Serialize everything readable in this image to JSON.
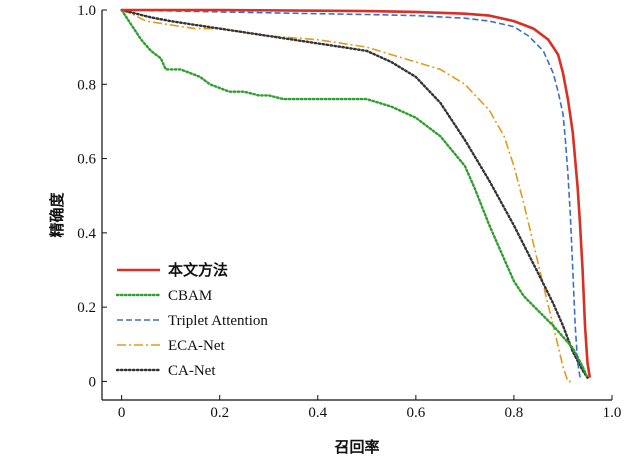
{
  "chart_data": {
    "type": "line",
    "title": "",
    "xlabel": "召回率",
    "ylabel": "精确度",
    "xlim": [
      -0.04,
      1.0
    ],
    "ylim": [
      -0.05,
      1.0
    ],
    "xticks": [
      0,
      0.2,
      0.4,
      0.6,
      0.8,
      1.0
    ],
    "xtick_labels": [
      "0",
      "0.2",
      "0.4",
      "0.6",
      "0.8",
      "1.0"
    ],
    "yticks": [
      0,
      0.2,
      0.4,
      0.6,
      0.8,
      1.0
    ],
    "ytick_labels": [
      "0",
      "0.2",
      "0.4",
      "0.6",
      "0.8",
      "1.0"
    ],
    "grid": false,
    "legend_position": "bottom-left",
    "series": [
      {
        "name": "本文方法",
        "color": "#d93025",
        "style": "solid",
        "x": [
          0.0,
          0.2,
          0.4,
          0.5,
          0.6,
          0.7,
          0.75,
          0.8,
          0.84,
          0.87,
          0.89,
          0.9,
          0.91,
          0.92,
          0.93,
          0.935,
          0.94,
          0.945,
          0.95,
          0.955
        ],
        "y": [
          1.0,
          1.0,
          0.998,
          0.997,
          0.995,
          0.99,
          0.985,
          0.97,
          0.95,
          0.92,
          0.88,
          0.83,
          0.76,
          0.67,
          0.52,
          0.42,
          0.3,
          0.15,
          0.05,
          0.01
        ]
      },
      {
        "name": "CBAM",
        "color": "#2e9e2e",
        "style": "dotted",
        "x": [
          0.0,
          0.02,
          0.04,
          0.06,
          0.08,
          0.09,
          0.1,
          0.12,
          0.14,
          0.16,
          0.18,
          0.2,
          0.22,
          0.25,
          0.28,
          0.3,
          0.33,
          0.36,
          0.4,
          0.45,
          0.5,
          0.55,
          0.6,
          0.65,
          0.7,
          0.72,
          0.75,
          0.78,
          0.8,
          0.82,
          0.85,
          0.88,
          0.9,
          0.92,
          0.94,
          0.95
        ],
        "y": [
          1.0,
          0.96,
          0.92,
          0.89,
          0.87,
          0.84,
          0.84,
          0.84,
          0.83,
          0.82,
          0.8,
          0.79,
          0.78,
          0.78,
          0.77,
          0.77,
          0.76,
          0.76,
          0.76,
          0.76,
          0.76,
          0.74,
          0.71,
          0.66,
          0.58,
          0.52,
          0.42,
          0.33,
          0.27,
          0.23,
          0.19,
          0.15,
          0.12,
          0.09,
          0.04,
          0.01
        ]
      },
      {
        "name": "Triplet Attention",
        "color": "#3d6fc6",
        "style": "dashed",
        "x": [
          0.0,
          0.2,
          0.4,
          0.5,
          0.6,
          0.7,
          0.75,
          0.8,
          0.83,
          0.86,
          0.88,
          0.89,
          0.9,
          0.905,
          0.91,
          0.915,
          0.92,
          0.925,
          0.93,
          0.935
        ],
        "y": [
          1.0,
          0.995,
          0.99,
          0.988,
          0.985,
          0.978,
          0.97,
          0.955,
          0.93,
          0.89,
          0.83,
          0.78,
          0.72,
          0.65,
          0.56,
          0.45,
          0.3,
          0.15,
          0.05,
          0.01
        ]
      },
      {
        "name": "ECA-Net",
        "color": "#e39b1b",
        "style": "dashdot",
        "x": [
          0.0,
          0.02,
          0.05,
          0.1,
          0.15,
          0.2,
          0.3,
          0.4,
          0.45,
          0.5,
          0.55,
          0.6,
          0.65,
          0.7,
          0.75,
          0.78,
          0.8,
          0.82,
          0.84,
          0.86,
          0.88,
          0.9,
          0.91,
          0.92
        ],
        "y": [
          1.0,
          0.99,
          0.97,
          0.96,
          0.95,
          0.95,
          0.93,
          0.92,
          0.91,
          0.9,
          0.88,
          0.86,
          0.84,
          0.8,
          0.73,
          0.66,
          0.58,
          0.48,
          0.37,
          0.26,
          0.15,
          0.04,
          0.0,
          0.0
        ]
      },
      {
        "name": "CA-Net",
        "color": "#333333",
        "style": "dotted",
        "x": [
          0.0,
          0.03,
          0.06,
          0.1,
          0.15,
          0.2,
          0.25,
          0.3,
          0.35,
          0.4,
          0.45,
          0.5,
          0.55,
          0.6,
          0.65,
          0.7,
          0.75,
          0.8,
          0.85,
          0.88,
          0.9,
          0.92,
          0.94,
          0.95
        ],
        "y": [
          1.0,
          0.99,
          0.98,
          0.97,
          0.96,
          0.95,
          0.94,
          0.93,
          0.92,
          0.91,
          0.9,
          0.89,
          0.86,
          0.82,
          0.75,
          0.65,
          0.54,
          0.42,
          0.29,
          0.21,
          0.15,
          0.08,
          0.03,
          0.01
        ]
      }
    ]
  }
}
